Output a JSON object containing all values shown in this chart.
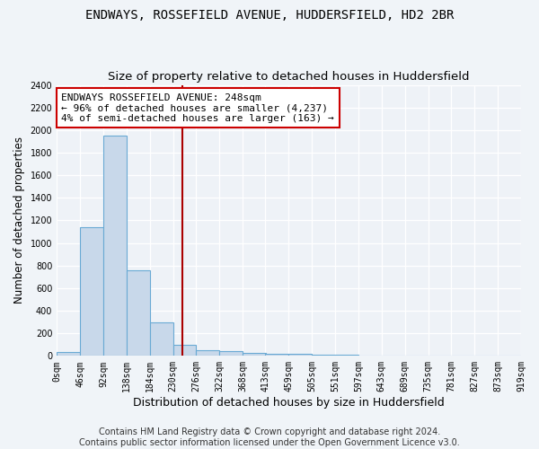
{
  "title": "ENDWAYS, ROSSEFIELD AVENUE, HUDDERSFIELD, HD2 2BR",
  "subtitle": "Size of property relative to detached houses in Huddersfield",
  "xlabel": "Distribution of detached houses by size in Huddersfield",
  "ylabel": "Number of detached properties",
  "bin_edges": [
    0,
    46,
    92,
    138,
    184,
    230,
    276,
    322,
    368,
    413,
    459,
    505,
    551,
    597,
    643,
    689,
    735,
    781,
    827,
    873,
    919
  ],
  "bar_heights": [
    35,
    1140,
    1950,
    760,
    300,
    100,
    50,
    40,
    30,
    20,
    15,
    10,
    8,
    5,
    5,
    5,
    3,
    3,
    2,
    2
  ],
  "bar_color": "#c8d8ea",
  "bar_edgecolor": "#6aaad4",
  "property_size": 248,
  "vline_color": "#aa0000",
  "annotation_line1": "ENDWAYS ROSSEFIELD AVENUE: 248sqm",
  "annotation_line2": "← 96% of detached houses are smaller (4,237)",
  "annotation_line3": "4% of semi-detached houses are larger (163) →",
  "annotation_box_edgecolor": "#cc0000",
  "annotation_box_facecolor": "#ffffff",
  "ylim": [
    0,
    2400
  ],
  "xlim": [
    0,
    919
  ],
  "ytick_values": [
    0,
    200,
    400,
    600,
    800,
    1000,
    1200,
    1400,
    1600,
    1800,
    2000,
    2200,
    2400
  ],
  "tick_labels": [
    "0sqm",
    "46sqm",
    "92sqm",
    "138sqm",
    "184sqm",
    "230sqm",
    "276sqm",
    "322sqm",
    "368sqm",
    "413sqm",
    "459sqm",
    "505sqm",
    "551sqm",
    "597sqm",
    "643sqm",
    "689sqm",
    "735sqm",
    "781sqm",
    "827sqm",
    "873sqm",
    "919sqm"
  ],
  "tick_positions": [
    0,
    46,
    92,
    138,
    184,
    230,
    276,
    322,
    368,
    413,
    459,
    505,
    551,
    597,
    643,
    689,
    735,
    781,
    827,
    873,
    919
  ],
  "footer_text": "Contains HM Land Registry data © Crown copyright and database right 2024.\nContains public sector information licensed under the Open Government Licence v3.0.",
  "title_fontsize": 10,
  "subtitle_fontsize": 9.5,
  "xlabel_fontsize": 9,
  "ylabel_fontsize": 8.5,
  "tick_fontsize": 7,
  "annotation_fontsize": 8,
  "footer_fontsize": 7,
  "figure_facecolor": "#f0f4f8",
  "axes_facecolor": "#eef2f7",
  "grid_color": "#ffffff"
}
